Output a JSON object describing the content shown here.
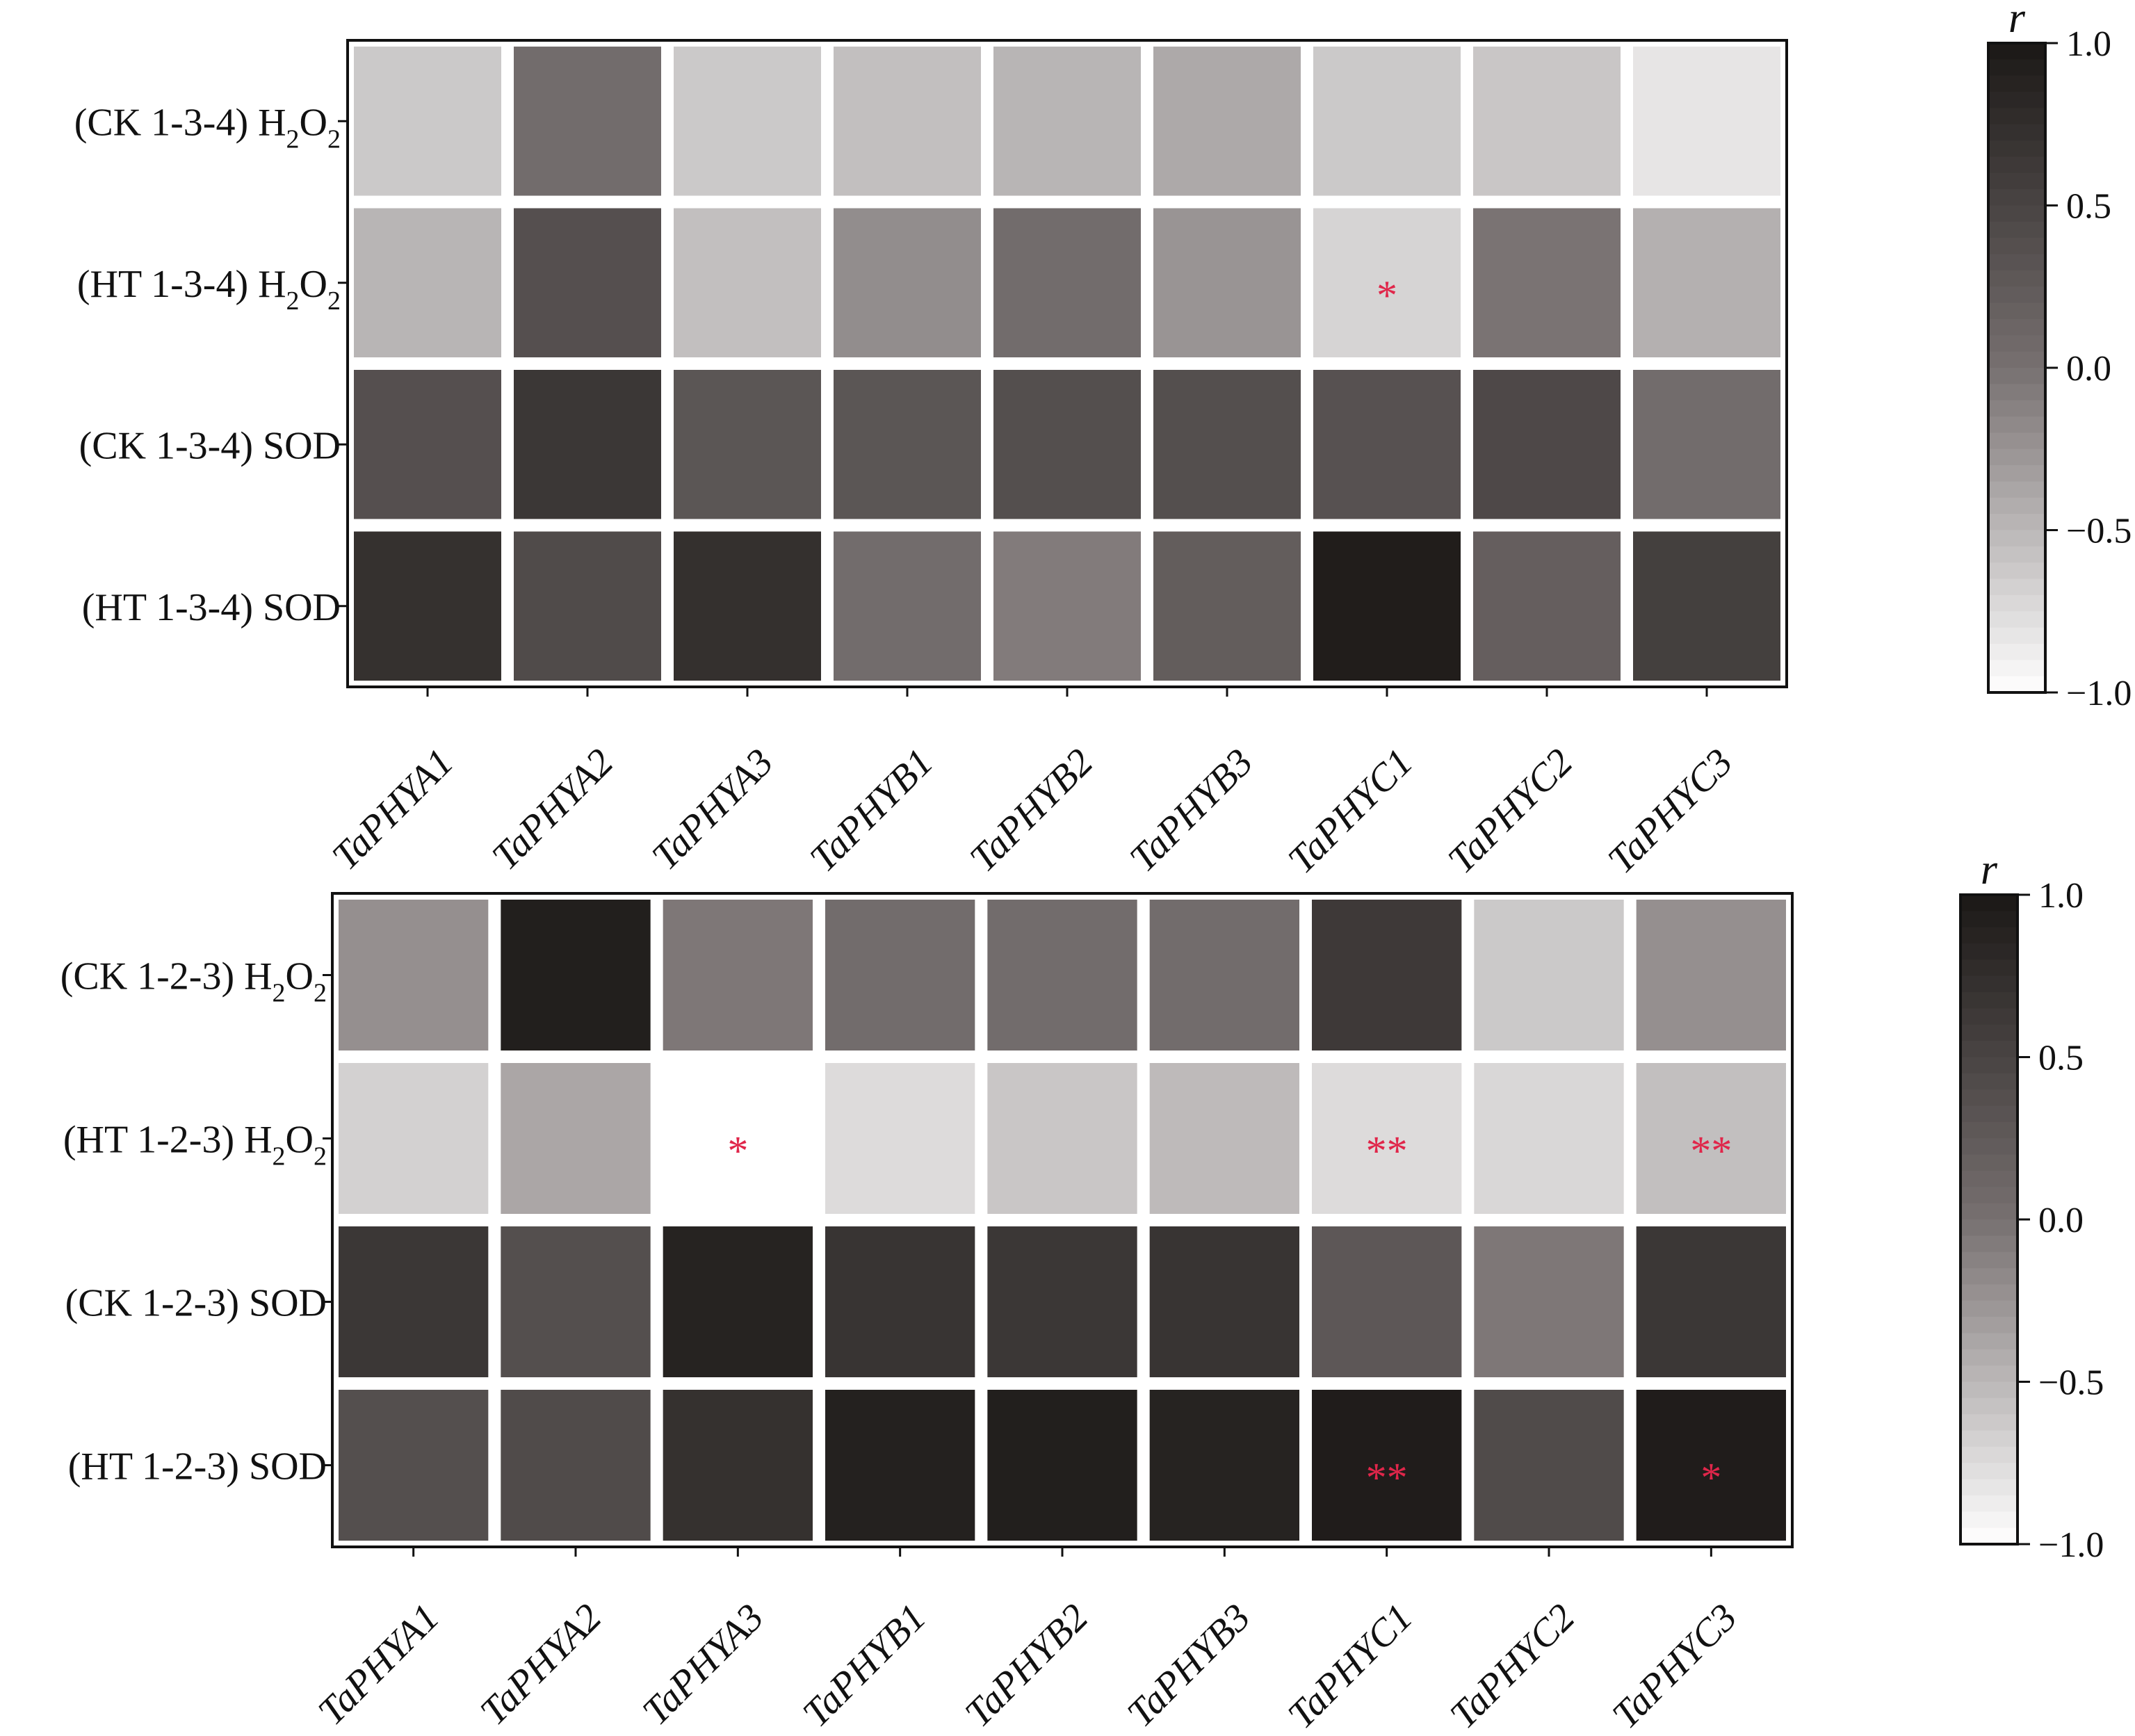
{
  "colorbar": {
    "title": "r",
    "ticks": [
      1.0,
      0.5,
      0.0,
      -0.5,
      -1.0
    ],
    "tick_labels": [
      "1.0",
      "0.5",
      "0.0",
      "−0.5",
      "−1.0"
    ],
    "range": [
      -1.0,
      1.0
    ],
    "colors": {
      "high": "#1b1816",
      "mid": "#777070",
      "low": "#ffffff"
    }
  },
  "significance_color": "#e0264a",
  "chart_data": [
    {
      "type": "heatmap",
      "columns": [
        "TaPHYA1",
        "TaPHYA2",
        "TaPHYA3",
        "TaPHYB1",
        "TaPHYB2",
        "TaPHYB3",
        "TaPHYC1",
        "TaPHYC2",
        "TaPHYC3"
      ],
      "rows": [
        {
          "prefix": "(CK 1-3-4) ",
          "main": "H",
          "sub1": "2",
          "mid": "O",
          "sub2": "2",
          "suffix": ""
        },
        {
          "prefix": "(HT 1-3-4) ",
          "main": "H",
          "sub1": "2",
          "mid": "O",
          "sub2": "2",
          "suffix": ""
        },
        {
          "prefix": "(CK 1-3-4) SOD",
          "main": "",
          "sub1": "",
          "mid": "",
          "sub2": "",
          "suffix": ""
        },
        {
          "prefix": "(HT 1-3-4) SOD",
          "main": "",
          "sub1": "",
          "mid": "",
          "sub2": "",
          "suffix": ""
        }
      ],
      "values": [
        [
          -0.62,
          0.05,
          -0.62,
          -0.55,
          -0.48,
          -0.4,
          -0.62,
          -0.6,
          -0.82
        ],
        [
          -0.48,
          0.37,
          -0.55,
          -0.2,
          0.05,
          -0.25,
          -0.7,
          -0.02,
          -0.45
        ],
        [
          0.37,
          0.65,
          0.3,
          0.3,
          0.38,
          0.38,
          0.35,
          0.45,
          0.05
        ],
        [
          0.72,
          0.42,
          0.73,
          0.05,
          -0.08,
          0.22,
          0.94,
          0.2,
          0.55
        ]
      ],
      "significance": [
        [
          "",
          "",
          "",
          "",
          "",
          "",
          "",
          "",
          ""
        ],
        [
          "",
          "",
          "",
          "",
          "",
          "",
          "*",
          "",
          ""
        ],
        [
          "",
          "",
          "",
          "",
          "",
          "",
          "",
          "",
          ""
        ],
        [
          "",
          "",
          "",
          "",
          "",
          "",
          "",
          "",
          ""
        ]
      ],
      "zlim": [
        -1.0,
        1.0
      ]
    },
    {
      "type": "heatmap",
      "columns": [
        "TaPHYA1",
        "TaPHYA2",
        "TaPHYA3",
        "TaPHYB1",
        "TaPHYB2",
        "TaPHYB3",
        "TaPHYC1",
        "TaPHYC2",
        "TaPHYC3"
      ],
      "rows": [
        {
          "prefix": "(CK 1-2-3) ",
          "main": "H",
          "sub1": "2",
          "mid": "O",
          "sub2": "2",
          "suffix": ""
        },
        {
          "prefix": "(HT 1-2-3) ",
          "main": "H",
          "sub1": "2",
          "mid": "O",
          "sub2": "2",
          "suffix": ""
        },
        {
          "prefix": "(CK 1-2-3) SOD",
          "main": "",
          "sub1": "",
          "mid": "",
          "sub2": "",
          "suffix": ""
        },
        {
          "prefix": "(HT 1-2-3) SOD",
          "main": "",
          "sub1": "",
          "mid": "",
          "sub2": "",
          "suffix": ""
        }
      ],
      "values": [
        [
          -0.22,
          0.92,
          -0.05,
          0.05,
          0.05,
          0.05,
          0.62,
          -0.62,
          -0.22
        ],
        [
          -0.68,
          -0.38,
          -1.0,
          -0.75,
          -0.6,
          -0.52,
          -0.75,
          -0.72,
          -0.55
        ],
        [
          0.65,
          0.38,
          0.88,
          0.68,
          0.65,
          0.68,
          0.28,
          -0.05,
          0.65
        ],
        [
          0.38,
          0.42,
          0.72,
          0.9,
          0.92,
          0.88,
          0.95,
          0.42,
          0.95
        ]
      ],
      "significance": [
        [
          "",
          "",
          "",
          "",
          "",
          "",
          "",
          "",
          ""
        ],
        [
          "",
          "",
          "*",
          "",
          "",
          "",
          "**",
          "",
          "**"
        ],
        [
          "",
          "",
          "",
          "",
          "",
          "",
          "",
          "",
          ""
        ],
        [
          "",
          "",
          "",
          "",
          "",
          "",
          "**",
          "",
          "*"
        ]
      ],
      "zlim": [
        -1.0,
        1.0
      ]
    }
  ]
}
